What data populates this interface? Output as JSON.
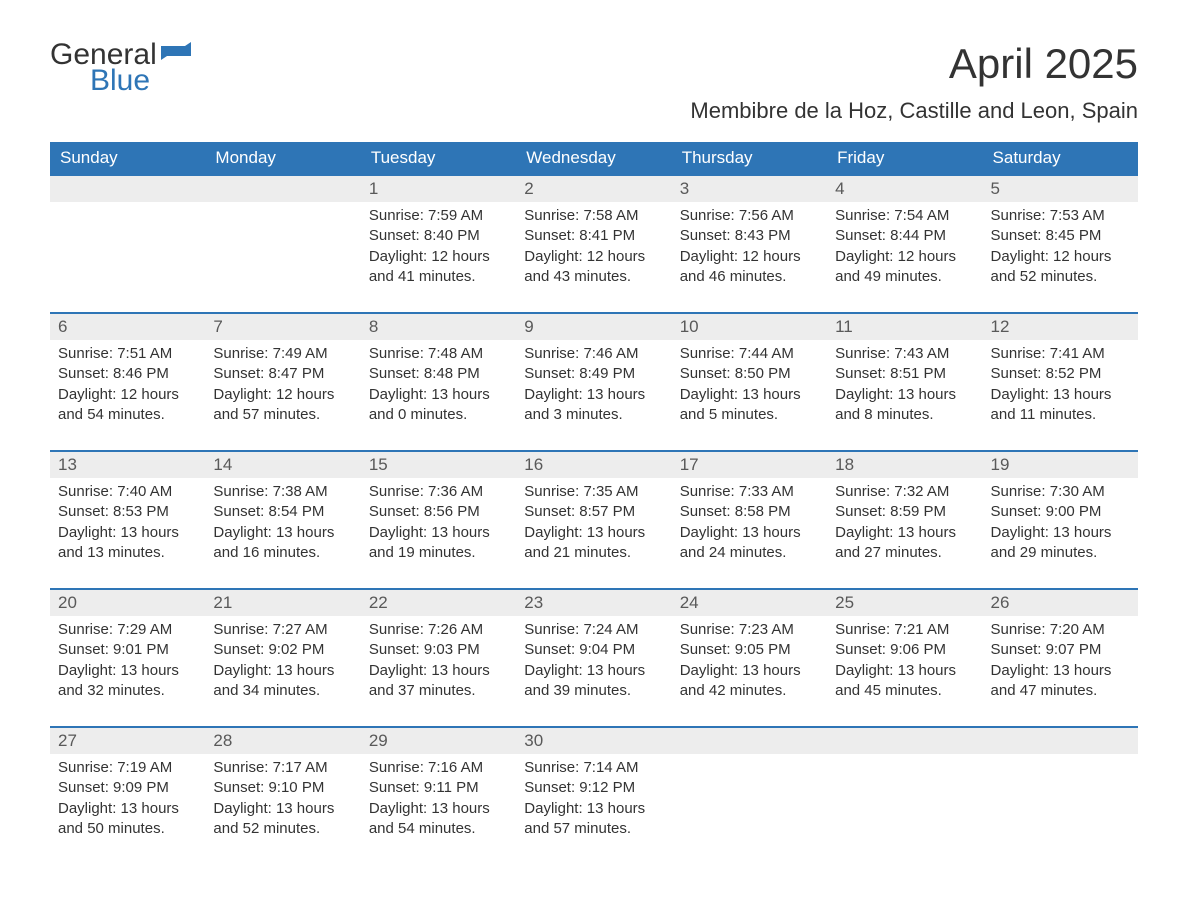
{
  "logo": {
    "general": "General",
    "blue": "Blue"
  },
  "title": "April 2025",
  "location": "Membibre de la Hoz, Castille and Leon, Spain",
  "colors": {
    "header_bg": "#2e75b6",
    "header_text": "#ffffff",
    "daynum_bg": "#ededed",
    "daynum_border": "#2e75b6",
    "daynum_text": "#595959",
    "body_text": "#333333",
    "logo_blue": "#2e75b6",
    "page_bg": "#ffffff"
  },
  "day_headers": [
    "Sunday",
    "Monday",
    "Tuesday",
    "Wednesday",
    "Thursday",
    "Friday",
    "Saturday"
  ],
  "weeks": [
    [
      null,
      null,
      {
        "n": "1",
        "sunrise": "Sunrise: 7:59 AM",
        "sunset": "Sunset: 8:40 PM",
        "d1": "Daylight: 12 hours",
        "d2": "and 41 minutes."
      },
      {
        "n": "2",
        "sunrise": "Sunrise: 7:58 AM",
        "sunset": "Sunset: 8:41 PM",
        "d1": "Daylight: 12 hours",
        "d2": "and 43 minutes."
      },
      {
        "n": "3",
        "sunrise": "Sunrise: 7:56 AM",
        "sunset": "Sunset: 8:43 PM",
        "d1": "Daylight: 12 hours",
        "d2": "and 46 minutes."
      },
      {
        "n": "4",
        "sunrise": "Sunrise: 7:54 AM",
        "sunset": "Sunset: 8:44 PM",
        "d1": "Daylight: 12 hours",
        "d2": "and 49 minutes."
      },
      {
        "n": "5",
        "sunrise": "Sunrise: 7:53 AM",
        "sunset": "Sunset: 8:45 PM",
        "d1": "Daylight: 12 hours",
        "d2": "and 52 minutes."
      }
    ],
    [
      {
        "n": "6",
        "sunrise": "Sunrise: 7:51 AM",
        "sunset": "Sunset: 8:46 PM",
        "d1": "Daylight: 12 hours",
        "d2": "and 54 minutes."
      },
      {
        "n": "7",
        "sunrise": "Sunrise: 7:49 AM",
        "sunset": "Sunset: 8:47 PM",
        "d1": "Daylight: 12 hours",
        "d2": "and 57 minutes."
      },
      {
        "n": "8",
        "sunrise": "Sunrise: 7:48 AM",
        "sunset": "Sunset: 8:48 PM",
        "d1": "Daylight: 13 hours",
        "d2": "and 0 minutes."
      },
      {
        "n": "9",
        "sunrise": "Sunrise: 7:46 AM",
        "sunset": "Sunset: 8:49 PM",
        "d1": "Daylight: 13 hours",
        "d2": "and 3 minutes."
      },
      {
        "n": "10",
        "sunrise": "Sunrise: 7:44 AM",
        "sunset": "Sunset: 8:50 PM",
        "d1": "Daylight: 13 hours",
        "d2": "and 5 minutes."
      },
      {
        "n": "11",
        "sunrise": "Sunrise: 7:43 AM",
        "sunset": "Sunset: 8:51 PM",
        "d1": "Daylight: 13 hours",
        "d2": "and 8 minutes."
      },
      {
        "n": "12",
        "sunrise": "Sunrise: 7:41 AM",
        "sunset": "Sunset: 8:52 PM",
        "d1": "Daylight: 13 hours",
        "d2": "and 11 minutes."
      }
    ],
    [
      {
        "n": "13",
        "sunrise": "Sunrise: 7:40 AM",
        "sunset": "Sunset: 8:53 PM",
        "d1": "Daylight: 13 hours",
        "d2": "and 13 minutes."
      },
      {
        "n": "14",
        "sunrise": "Sunrise: 7:38 AM",
        "sunset": "Sunset: 8:54 PM",
        "d1": "Daylight: 13 hours",
        "d2": "and 16 minutes."
      },
      {
        "n": "15",
        "sunrise": "Sunrise: 7:36 AM",
        "sunset": "Sunset: 8:56 PM",
        "d1": "Daylight: 13 hours",
        "d2": "and 19 minutes."
      },
      {
        "n": "16",
        "sunrise": "Sunrise: 7:35 AM",
        "sunset": "Sunset: 8:57 PM",
        "d1": "Daylight: 13 hours",
        "d2": "and 21 minutes."
      },
      {
        "n": "17",
        "sunrise": "Sunrise: 7:33 AM",
        "sunset": "Sunset: 8:58 PM",
        "d1": "Daylight: 13 hours",
        "d2": "and 24 minutes."
      },
      {
        "n": "18",
        "sunrise": "Sunrise: 7:32 AM",
        "sunset": "Sunset: 8:59 PM",
        "d1": "Daylight: 13 hours",
        "d2": "and 27 minutes."
      },
      {
        "n": "19",
        "sunrise": "Sunrise: 7:30 AM",
        "sunset": "Sunset: 9:00 PM",
        "d1": "Daylight: 13 hours",
        "d2": "and 29 minutes."
      }
    ],
    [
      {
        "n": "20",
        "sunrise": "Sunrise: 7:29 AM",
        "sunset": "Sunset: 9:01 PM",
        "d1": "Daylight: 13 hours",
        "d2": "and 32 minutes."
      },
      {
        "n": "21",
        "sunrise": "Sunrise: 7:27 AM",
        "sunset": "Sunset: 9:02 PM",
        "d1": "Daylight: 13 hours",
        "d2": "and 34 minutes."
      },
      {
        "n": "22",
        "sunrise": "Sunrise: 7:26 AM",
        "sunset": "Sunset: 9:03 PM",
        "d1": "Daylight: 13 hours",
        "d2": "and 37 minutes."
      },
      {
        "n": "23",
        "sunrise": "Sunrise: 7:24 AM",
        "sunset": "Sunset: 9:04 PM",
        "d1": "Daylight: 13 hours",
        "d2": "and 39 minutes."
      },
      {
        "n": "24",
        "sunrise": "Sunrise: 7:23 AM",
        "sunset": "Sunset: 9:05 PM",
        "d1": "Daylight: 13 hours",
        "d2": "and 42 minutes."
      },
      {
        "n": "25",
        "sunrise": "Sunrise: 7:21 AM",
        "sunset": "Sunset: 9:06 PM",
        "d1": "Daylight: 13 hours",
        "d2": "and 45 minutes."
      },
      {
        "n": "26",
        "sunrise": "Sunrise: 7:20 AM",
        "sunset": "Sunset: 9:07 PM",
        "d1": "Daylight: 13 hours",
        "d2": "and 47 minutes."
      }
    ],
    [
      {
        "n": "27",
        "sunrise": "Sunrise: 7:19 AM",
        "sunset": "Sunset: 9:09 PM",
        "d1": "Daylight: 13 hours",
        "d2": "and 50 minutes."
      },
      {
        "n": "28",
        "sunrise": "Sunrise: 7:17 AM",
        "sunset": "Sunset: 9:10 PM",
        "d1": "Daylight: 13 hours",
        "d2": "and 52 minutes."
      },
      {
        "n": "29",
        "sunrise": "Sunrise: 7:16 AM",
        "sunset": "Sunset: 9:11 PM",
        "d1": "Daylight: 13 hours",
        "d2": "and 54 minutes."
      },
      {
        "n": "30",
        "sunrise": "Sunrise: 7:14 AM",
        "sunset": "Sunset: 9:12 PM",
        "d1": "Daylight: 13 hours",
        "d2": "and 57 minutes."
      },
      null,
      null,
      null
    ]
  ]
}
